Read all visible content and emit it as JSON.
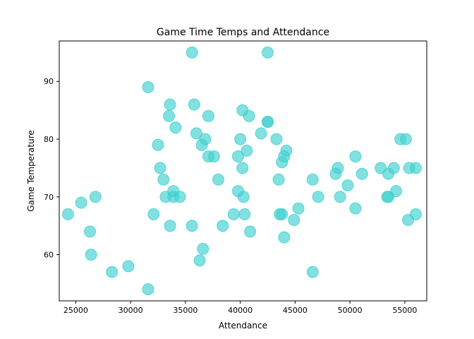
{
  "chart_data": {
    "type": "scatter",
    "title": "Game Time Temps and Attendance",
    "xlabel": "Attendance",
    "ylabel": "Game Temperature",
    "xlim": [
      23500,
      57000
    ],
    "ylim": [
      52,
      97
    ],
    "xticks": [
      25000,
      30000,
      35000,
      40000,
      45000,
      50000,
      55000
    ],
    "yticks": [
      60,
      70,
      80,
      90
    ],
    "grid": false,
    "marker_color": "#40d0d0",
    "marker_alpha": 0.65,
    "series": [
      {
        "points": [
          [
            24300,
            67
          ],
          [
            25500,
            69
          ],
          [
            26300,
            64
          ],
          [
            26400,
            60
          ],
          [
            26800,
            70
          ],
          [
            28300,
            57
          ],
          [
            29800,
            58
          ],
          [
            31600,
            54
          ],
          [
            31600,
            89
          ],
          [
            32100,
            67
          ],
          [
            32500,
            79
          ],
          [
            32700,
            75
          ],
          [
            33000,
            73
          ],
          [
            33200,
            70
          ],
          [
            33500,
            84
          ],
          [
            33600,
            86
          ],
          [
            33600,
            65
          ],
          [
            33900,
            71
          ],
          [
            33900,
            70
          ],
          [
            34100,
            82
          ],
          [
            34500,
            70
          ],
          [
            35600,
            95
          ],
          [
            35600,
            65
          ],
          [
            35800,
            86
          ],
          [
            36000,
            81
          ],
          [
            36300,
            59
          ],
          [
            36500,
            79
          ],
          [
            36600,
            61
          ],
          [
            36800,
            80
          ],
          [
            37100,
            77
          ],
          [
            37100,
            84
          ],
          [
            37600,
            77
          ],
          [
            38000,
            73
          ],
          [
            38400,
            65
          ],
          [
            39400,
            67
          ],
          [
            39800,
            77
          ],
          [
            39800,
            71
          ],
          [
            40000,
            80
          ],
          [
            40200,
            85
          ],
          [
            40200,
            75
          ],
          [
            40300,
            70
          ],
          [
            40400,
            67
          ],
          [
            40600,
            78
          ],
          [
            40800,
            84
          ],
          [
            40900,
            64
          ],
          [
            41900,
            81
          ],
          [
            42500,
            95
          ],
          [
            42500,
            83
          ],
          [
            42500,
            83
          ],
          [
            43300,
            80
          ],
          [
            43500,
            73
          ],
          [
            43600,
            67
          ],
          [
            43800,
            67
          ],
          [
            43800,
            76
          ],
          [
            44000,
            77
          ],
          [
            44000,
            63
          ],
          [
            44200,
            78
          ],
          [
            44900,
            66
          ],
          [
            45300,
            68
          ],
          [
            46600,
            73
          ],
          [
            46600,
            57
          ],
          [
            47100,
            70
          ],
          [
            48700,
            74
          ],
          [
            48900,
            75
          ],
          [
            49100,
            70
          ],
          [
            49800,
            72
          ],
          [
            50500,
            77
          ],
          [
            50500,
            68
          ],
          [
            51100,
            74
          ],
          [
            52800,
            75
          ],
          [
            53400,
            70
          ],
          [
            53500,
            70
          ],
          [
            53500,
            74
          ],
          [
            54000,
            75
          ],
          [
            54200,
            71
          ],
          [
            54600,
            80
          ],
          [
            55100,
            80
          ],
          [
            55300,
            66
          ],
          [
            55400,
            75
          ],
          [
            56000,
            75
          ],
          [
            56000,
            67
          ]
        ]
      }
    ]
  }
}
